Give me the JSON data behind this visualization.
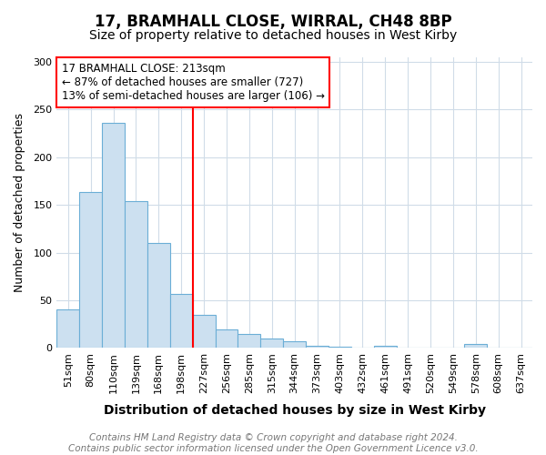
{
  "title": "17, BRAMHALL CLOSE, WIRRAL, CH48 8BP",
  "subtitle": "Size of property relative to detached houses in West Kirby",
  "xlabel": "Distribution of detached houses by size in West Kirby",
  "ylabel": "Number of detached properties",
  "categories": [
    "51sqm",
    "80sqm",
    "110sqm",
    "139sqm",
    "168sqm",
    "198sqm",
    "227sqm",
    "256sqm",
    "285sqm",
    "315sqm",
    "344sqm",
    "373sqm",
    "403sqm",
    "432sqm",
    "461sqm",
    "491sqm",
    "520sqm",
    "549sqm",
    "578sqm",
    "608sqm",
    "637sqm"
  ],
  "values": [
    40,
    163,
    236,
    154,
    110,
    57,
    35,
    19,
    15,
    10,
    7,
    2,
    1,
    0,
    2,
    0,
    0,
    0,
    4,
    0,
    0
  ],
  "bar_color": "#cce0f0",
  "bar_edgecolor": "#6baed6",
  "vline_x_index": 6,
  "vline_color": "red",
  "annotation_text": "17 BRAMHALL CLOSE: 213sqm\n← 87% of detached houses are smaller (727)\n13% of semi-detached houses are larger (106) →",
  "annotation_box_color": "white",
  "annotation_box_edgecolor": "red",
  "footnote": "Contains HM Land Registry data © Crown copyright and database right 2024.\nContains public sector information licensed under the Open Government Licence v3.0.",
  "ylim": [
    0,
    305
  ],
  "yticks": [
    0,
    50,
    100,
    150,
    200,
    250,
    300
  ],
  "title_fontsize": 12,
  "subtitle_fontsize": 10,
  "xlabel_fontsize": 10,
  "ylabel_fontsize": 9,
  "tick_fontsize": 8,
  "annotation_fontsize": 8.5,
  "footnote_fontsize": 7.5,
  "bg_color": "#ffffff",
  "grid_color": "#d0dce8"
}
